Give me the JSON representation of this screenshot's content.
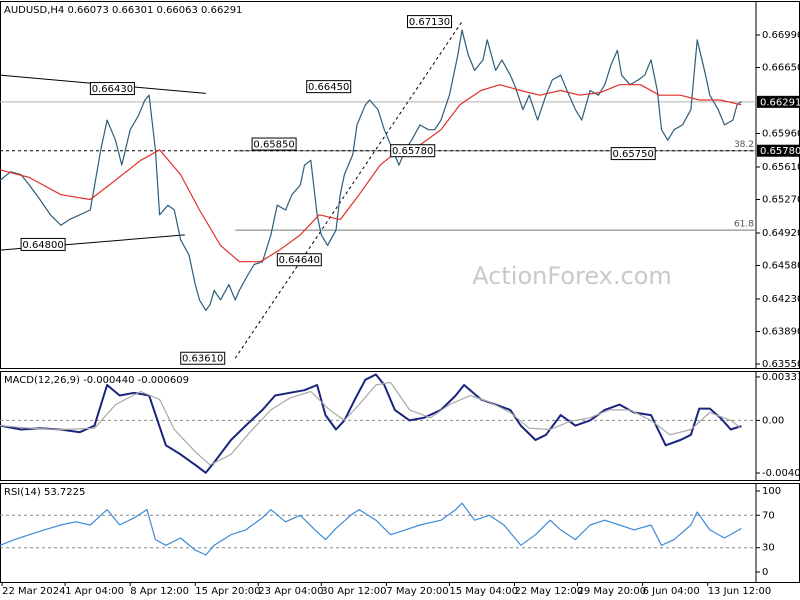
{
  "watermark": "ActionForex.com",
  "chart_data": [
    {
      "type": "line",
      "title": "AUDUSD,H4  0.66073 0.66301 0.66063 0.66291",
      "xlim": [
        0,
        360
      ],
      "xticks": [
        {
          "value": 1,
          "label": "22 Mar 2024"
        },
        {
          "value": 31,
          "label": "1 Apr 04:00"
        },
        {
          "value": 62,
          "label": "8 Apr 12:00"
        },
        {
          "value": 93,
          "label": "15 Apr 20:00"
        },
        {
          "value": 123,
          "label": "23 Apr 04:00"
        },
        {
          "value": 153,
          "label": "30 Apr 12:00"
        },
        {
          "value": 184,
          "label": "7 May 20:00"
        },
        {
          "value": 214,
          "label": "15 May 04:00"
        },
        {
          "value": 245,
          "label": "22 May 12:00"
        },
        {
          "value": 275,
          "label": "29 May 20:00"
        },
        {
          "value": 306,
          "label": "6 Jun 04:00"
        },
        {
          "value": 337,
          "label": "13 Jun 12:00"
        }
      ],
      "ylim": [
        0.63508,
        0.67335
      ],
      "yticks": [
        {
          "value": 0.6699,
          "label": "0.66990"
        },
        {
          "value": 0.6665,
          "label": "0.66650"
        },
        {
          "value": 0.6596,
          "label": "0.65960"
        },
        {
          "value": 0.6561,
          "label": "0.65610"
        },
        {
          "value": 0.6527,
          "label": "0.65270"
        },
        {
          "value": 0.6492,
          "label": "0.64920"
        },
        {
          "value": 0.6458,
          "label": "0.64580"
        },
        {
          "value": 0.6423,
          "label": "0.64230"
        },
        {
          "value": 0.6389,
          "label": "0.63890"
        },
        {
          "value": 0.6355,
          "label": "0.63550"
        }
      ],
      "grid": false,
      "price_markers": [
        0.66291,
        {
          "value": 0.6578,
          "label": "0.65780"
        }
      ],
      "marker_lines": [
        "solid",
        "dashed"
      ],
      "series": [
        {
          "color": "#2e5d7a",
          "x": [
            0,
            5,
            10,
            14,
            19,
            24,
            29,
            33,
            38,
            43,
            48,
            51,
            55,
            58,
            62,
            66,
            69,
            71,
            74,
            76,
            80,
            83,
            86,
            90,
            93,
            95,
            98,
            100,
            102,
            105,
            109,
            112,
            114,
            118,
            121,
            125,
            129,
            132,
            136,
            139,
            143,
            145,
            148,
            151,
            153,
            156,
            160,
            162,
            164,
            168,
            170,
            174,
            176,
            180,
            183,
            187,
            190,
            193,
            196,
            200,
            204,
            207,
            210,
            214,
            218,
            220,
            223,
            226,
            230,
            232,
            236,
            239,
            243,
            245,
            249,
            252,
            256,
            260,
            263,
            267,
            270,
            274,
            277,
            281,
            285,
            288,
            291,
            294,
            296,
            300,
            304,
            307,
            310,
            313,
            315,
            318,
            321,
            325,
            329,
            332,
            336,
            338,
            342,
            345,
            349,
            351,
            353
          ],
          "values": [
            0.6547,
            0.6556,
            0.6553,
            0.6542,
            0.6527,
            0.6511,
            0.65,
            0.6506,
            0.6511,
            0.6516,
            0.6579,
            0.661,
            0.6589,
            0.6563,
            0.66,
            0.6615,
            0.6631,
            0.6636,
            0.6579,
            0.6511,
            0.6521,
            0.6516,
            0.6485,
            0.6469,
            0.6438,
            0.6422,
            0.6411,
            0.6417,
            0.6432,
            0.6422,
            0.6438,
            0.6422,
            0.6432,
            0.6448,
            0.6459,
            0.6462,
            0.649,
            0.6521,
            0.6516,
            0.6532,
            0.6542,
            0.6563,
            0.6568,
            0.6511,
            0.649,
            0.6479,
            0.6495,
            0.6532,
            0.6553,
            0.6574,
            0.6605,
            0.6626,
            0.6631,
            0.6621,
            0.66,
            0.6579,
            0.6563,
            0.6579,
            0.6589,
            0.6605,
            0.66,
            0.66,
            0.661,
            0.6636,
            0.6678,
            0.6704,
            0.6678,
            0.6662,
            0.6673,
            0.6694,
            0.6662,
            0.6673,
            0.6657,
            0.6647,
            0.6621,
            0.6636,
            0.661,
            0.6636,
            0.6652,
            0.6657,
            0.6641,
            0.6621,
            0.661,
            0.6641,
            0.6636,
            0.6647,
            0.6668,
            0.6683,
            0.6657,
            0.6647,
            0.6652,
            0.6657,
            0.6673,
            0.6641,
            0.66,
            0.6589,
            0.66,
            0.6605,
            0.6621,
            0.6694,
            0.6657,
            0.6636,
            0.6621,
            0.6605,
            0.661,
            0.6626,
            0.66291
          ]
        },
        {
          "color": "#e0312a",
          "x": [
            0,
            14,
            29,
            43,
            52,
            67,
            76,
            86,
            95,
            105,
            114,
            124,
            133,
            143,
            152,
            162,
            171,
            181,
            190,
            200,
            210,
            219,
            229,
            238,
            248,
            257,
            267,
            276,
            286,
            295,
            305,
            314,
            324,
            333,
            343,
            353
          ],
          "values": [
            0.6558,
            0.655,
            0.6532,
            0.6527,
            0.6542,
            0.6568,
            0.6579,
            0.6553,
            0.6516,
            0.6479,
            0.6462,
            0.6462,
            0.6474,
            0.649,
            0.6511,
            0.6506,
            0.6532,
            0.6563,
            0.6579,
            0.6584,
            0.66,
            0.6626,
            0.6641,
            0.6647,
            0.6641,
            0.6636,
            0.6641,
            0.6636,
            0.6639,
            0.6647,
            0.6647,
            0.6636,
            0.6636,
            0.6631,
            0.6631,
            0.6626
          ]
        }
      ],
      "annotations": [
        {
          "x": 64,
          "value": 0.6643,
          "label": "0.66430"
        },
        {
          "x": 31,
          "value": 0.648,
          "label": "0.64800"
        },
        {
          "x": 107,
          "value": 0.6361,
          "label": "0.63610"
        },
        {
          "x": 153,
          "value": 0.6464,
          "label": "0.64640"
        },
        {
          "x": 141,
          "value": 0.6585,
          "label": "0.65850"
        },
        {
          "x": 167,
          "value": 0.6645,
          "label": "0.66450"
        },
        {
          "x": 207,
          "value": 0.6578,
          "label": "0.65780"
        },
        {
          "x": 215,
          "value": 0.6713,
          "label": "0.67130"
        },
        {
          "x": 312,
          "value": 0.6575,
          "label": "0.65750"
        }
      ],
      "trendlines": [
        {
          "x": [
            0,
            98
          ],
          "values": [
            0.6657,
            0.6638
          ],
          "style": "solid"
        },
        {
          "x": [
            0,
            88
          ],
          "values": [
            0.6474,
            0.649
          ],
          "style": "solid"
        },
        {
          "x": [
            112,
            220
          ],
          "values": [
            0.6361,
            0.6713
          ],
          "style": "dashed"
        }
      ],
      "fibonacci": [
        {
          "ratio": 38.2,
          "price": 0.6578,
          "x": 112
        },
        {
          "ratio": 61.8,
          "price": 0.6495,
          "x": 112
        }
      ]
    },
    {
      "type": "line",
      "title": "MACD(12,26,9) -0.000440 -0.000609",
      "ylim": [
        -0.00455,
        0.00369
      ],
      "yticks": [
        0.003313,
        {
          "value": 0,
          "label": "0.00"
        },
        -0.004016
      ],
      "grid": true,
      "series": [
        {
          "color": "#1a237e",
          "x": [
            0,
            10,
            19,
            29,
            38,
            45,
            51,
            57,
            64,
            71,
            75,
            79,
            86,
            93,
            98,
            102,
            110,
            117,
            125,
            131,
            138,
            145,
            151,
            155,
            160,
            164,
            169,
            174,
            179,
            183,
            188,
            195,
            202,
            210,
            217,
            221,
            229,
            236,
            243,
            248,
            255,
            260,
            267,
            274,
            281,
            288,
            295,
            302,
            310,
            317,
            324,
            329,
            333,
            338,
            343,
            348,
            353
          ],
          "values": [
            -0.0004,
            -0.0007,
            -0.0006,
            -0.0007,
            -0.0009,
            -0.0004,
            0.0027,
            0.0019,
            0.0021,
            0.0019,
            0,
            -0.0019,
            -0.0026,
            -0.0034,
            -0.004,
            -0.0032,
            -0.0015,
            -0.0004,
            0.0008,
            0.0019,
            0.0021,
            0.0023,
            0.0027,
            0.0004,
            -0.0007,
            0,
            0.0016,
            0.0031,
            0.0035,
            0.0027,
            0.0008,
            0,
            0.0002,
            0.0008,
            0.0019,
            0.0027,
            0.0016,
            0.0012,
            0.0008,
            -0.0004,
            -0.0015,
            -0.0011,
            0.0004,
            -0.0004,
            0,
            0.0008,
            0.0012,
            0.0006,
            0.0004,
            -0.0019,
            -0.0015,
            -0.0011,
            0.0009,
            0.0009,
            0.0002,
            -0.0007,
            -0.00044
          ]
        },
        {
          "color": "#a8a8a8",
          "x": [
            0,
            14,
            29,
            45,
            55,
            67,
            76,
            83,
            93,
            100,
            110,
            119,
            129,
            138,
            148,
            157,
            164,
            171,
            179,
            186,
            195,
            205,
            214,
            224,
            233,
            243,
            252,
            262,
            271,
            281,
            290,
            300,
            310,
            319,
            329,
            338,
            348,
            353
          ],
          "values": [
            -0.0004,
            -0.0006,
            -0.0007,
            -0.0006,
            0.0012,
            0.0022,
            0.0016,
            -0.0007,
            -0.0024,
            -0.0034,
            -0.0026,
            -0.0009,
            0.0008,
            0.0017,
            0.0022,
            0.0008,
            0,
            0.0012,
            0.0027,
            0.0029,
            0.0008,
            0.0002,
            0.0012,
            0.0019,
            0.0014,
            0.0006,
            -0.0006,
            -0.0007,
            -0.0001,
            0.0002,
            0.0008,
            0.0008,
            0,
            -0.0011,
            -0.0007,
            0.0006,
            0,
            -0.000609
          ]
        }
      ]
    },
    {
      "type": "line",
      "title": "RSI(14) 53.7225",
      "ylim": [
        -12.3,
        108.6
      ],
      "yticks": [
        100,
        70,
        30,
        0
      ],
      "grid": true,
      "series": [
        {
          "color": "#3d8bd8",
          "x": [
            0,
            7,
            14,
            21,
            29,
            36,
            43,
            48,
            51,
            57,
            64,
            70,
            74,
            79,
            86,
            93,
            98,
            102,
            110,
            117,
            125,
            129,
            136,
            143,
            150,
            155,
            160,
            167,
            171,
            179,
            186,
            193,
            200,
            210,
            217,
            220,
            226,
            233,
            240,
            248,
            255,
            262,
            267,
            274,
            281,
            288,
            295,
            302,
            310,
            315,
            321,
            329,
            332,
            338,
            345,
            353
          ],
          "values": [
            33,
            40,
            46,
            52,
            58,
            62,
            58,
            70,
            77,
            58,
            67,
            77,
            40,
            33,
            42,
            27,
            21,
            33,
            46,
            52,
            67,
            77,
            62,
            70,
            52,
            40,
            54,
            70,
            77,
            64,
            46,
            52,
            58,
            64,
            77,
            85,
            64,
            70,
            58,
            33,
            46,
            64,
            52,
            40,
            58,
            64,
            58,
            52,
            58,
            33,
            40,
            58,
            74,
            52,
            42,
            53.7225
          ]
        }
      ]
    }
  ]
}
